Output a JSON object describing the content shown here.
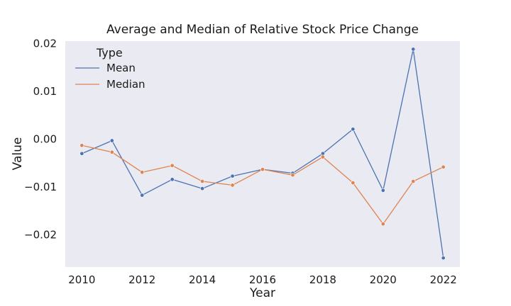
{
  "chart_data": {
    "type": "line",
    "title": "Average and Median of Relative Stock Price Change",
    "xlabel": "Year",
    "ylabel": "Value",
    "x": [
      2010,
      2011,
      2012,
      2013,
      2014,
      2015,
      2016,
      2017,
      2018,
      2019,
      2020,
      2021,
      2022
    ],
    "xticks": [
      2010,
      2012,
      2014,
      2016,
      2018,
      2020,
      2022
    ],
    "xtick_labels": [
      "2010",
      "2012",
      "2014",
      "2016",
      "2018",
      "2020",
      "2022"
    ],
    "yticks": [
      0.02,
      0.01,
      0.0,
      -0.01,
      -0.02
    ],
    "ytick_labels": [
      "0.02",
      "0.01",
      "0.00",
      "−0.01",
      "−0.02"
    ],
    "xlim": [
      2009.45,
      2022.55
    ],
    "ylim": [
      -0.0267,
      0.0205
    ],
    "grid": false,
    "legend": {
      "title": "Type",
      "position": "top-left"
    },
    "series": [
      {
        "name": "Mean",
        "color": "#4c72b0",
        "values": [
          -0.003,
          -0.0003,
          -0.0117,
          -0.0084,
          -0.0103,
          -0.0077,
          -0.0063,
          -0.0071,
          -0.003,
          0.0021,
          -0.0107,
          0.0188,
          -0.0248
        ]
      },
      {
        "name": "Median",
        "color": "#dd8452",
        "values": [
          -0.0013,
          -0.0027,
          -0.0069,
          -0.0055,
          -0.0088,
          -0.0096,
          -0.0063,
          -0.0075,
          -0.0037,
          -0.0091,
          -0.0177,
          -0.0088,
          -0.0058
        ]
      }
    ]
  },
  "colors": {
    "plot_background": "#eaeaf2"
  }
}
